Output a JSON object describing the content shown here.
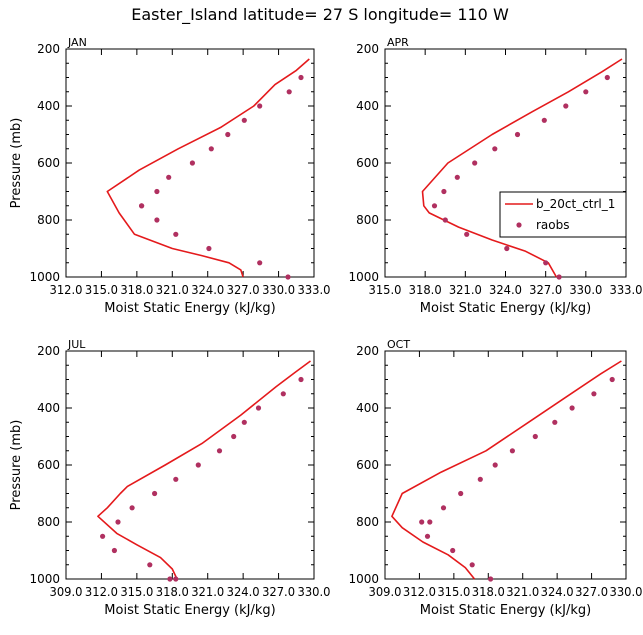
{
  "title": "Easter_Island  latitude= 27 S longitude= 110 W",
  "colors": {
    "model": "#e41a1c",
    "obs": "#b03060",
    "axis": "#000000"
  },
  "chart_data": [
    {
      "type": "line",
      "panel": "JAN",
      "xlabel": "Moist Static Energy (kJ/kg)",
      "ylabel": "Pressure (mb)",
      "xlim": [
        312.0,
        333.0
      ],
      "xticks": [
        312.0,
        315.0,
        318.0,
        321.0,
        324.0,
        327.0,
        330.0,
        333.0
      ],
      "xtick_labels": [
        "312.0",
        "315.0",
        "318.0",
        "321.0",
        "324.0",
        "327.0",
        "330.0",
        "333.0"
      ],
      "ylim": [
        200,
        1000
      ],
      "yticks": [
        200,
        400,
        600,
        800,
        1000
      ],
      "series": [
        {
          "name": "b_20ct_ctrl_1",
          "kind": "line",
          "x": [
            332.6,
            331.5,
            329.7,
            327.9,
            325.1,
            321.5,
            318.2,
            315.5,
            316.5,
            317.8,
            321.0,
            323.5,
            325.8,
            326.8,
            327.0
          ],
          "y": [
            235,
            275,
            325,
            400,
            475,
            550,
            625,
            700,
            775,
            850,
            900,
            925,
            950,
            975,
            1000
          ]
        },
        {
          "name": "raobs",
          "kind": "scatter",
          "x": [
            331.9,
            330.9,
            328.4,
            327.1,
            325.7,
            324.3,
            322.7,
            320.7,
            319.7,
            318.4,
            318.4,
            319.7,
            321.3,
            324.1,
            328.4,
            330.8
          ],
          "y": [
            300,
            350,
            400,
            450,
            500,
            550,
            600,
            650,
            700,
            750,
            750,
            800,
            850,
            900,
            950,
            1000
          ]
        }
      ]
    },
    {
      "type": "line",
      "panel": "APR",
      "xlabel": "Moist Static Energy (kJ/kg)",
      "ylabel": "",
      "xlim": [
        315.0,
        333.0
      ],
      "xticks": [
        315.0,
        318.0,
        321.0,
        324.0,
        327.0,
        330.0,
        333.0
      ],
      "xtick_labels": [
        "315.0",
        "318.0",
        "321.0",
        "324.0",
        "327.0",
        "330.0",
        "333.0"
      ],
      "ylim": [
        200,
        1000
      ],
      "yticks": [
        200,
        400,
        600,
        800,
        1000
      ],
      "series": [
        {
          "name": "b_20ct_ctrl_1",
          "kind": "line",
          "x": [
            332.7,
            331.2,
            328.7,
            326.0,
            323.0,
            319.7,
            317.8,
            317.9,
            318.3,
            320.5,
            323.0,
            325.5,
            327.2,
            327.8
          ],
          "y": [
            235,
            280,
            350,
            420,
            500,
            600,
            700,
            750,
            775,
            825,
            870,
            910,
            950,
            1000
          ]
        },
        {
          "name": "raobs",
          "kind": "scatter",
          "x": [
            331.6,
            330.0,
            328.5,
            326.9,
            324.9,
            323.2,
            321.7,
            320.4,
            319.4,
            318.7,
            319.5,
            321.1,
            324.1,
            327.0,
            328.0
          ],
          "y": [
            300,
            350,
            400,
            450,
            500,
            550,
            600,
            650,
            700,
            750,
            800,
            850,
            900,
            950,
            1000
          ]
        }
      ],
      "legend": {
        "placement": "right",
        "entries": [
          "b_20ct_ctrl_1",
          "raobs"
        ]
      }
    },
    {
      "type": "line",
      "panel": "JUL",
      "xlabel": "Moist Static Energy (kJ/kg)",
      "ylabel": "Pressure (mb)",
      "xlim": [
        309.0,
        330.0
      ],
      "xticks": [
        309.0,
        312.0,
        315.0,
        318.0,
        321.0,
        324.0,
        327.0,
        330.0
      ],
      "xtick_labels": [
        "309.0",
        "312.0",
        "315.0",
        "318.0",
        "321.0",
        "324.0",
        "327.0",
        "330.0"
      ],
      "ylim": [
        200,
        1000
      ],
      "yticks": [
        200,
        400,
        600,
        800,
        1000
      ],
      "series": [
        {
          "name": "b_20ct_ctrl_1",
          "kind": "line",
          "x": [
            329.7,
            328.4,
            326.8,
            323.8,
            320.5,
            317.4,
            314.2,
            313.6,
            312.5,
            311.7,
            313.3,
            315.0,
            317.0,
            318.0,
            318.4
          ],
          "y": [
            235,
            275,
            325,
            425,
            525,
            600,
            675,
            700,
            750,
            780,
            840,
            880,
            925,
            965,
            1000
          ]
        },
        {
          "name": "raobs",
          "kind": "scatter",
          "x": [
            328.9,
            327.4,
            325.3,
            324.1,
            323.2,
            322.0,
            320.2,
            318.3,
            316.5,
            314.6,
            313.4,
            312.1,
            313.1,
            316.1,
            317.8,
            318.3
          ],
          "y": [
            300,
            350,
            400,
            450,
            500,
            550,
            600,
            650,
            700,
            750,
            800,
            850,
            900,
            950,
            1000,
            1000
          ]
        }
      ]
    },
    {
      "type": "line",
      "panel": "OCT",
      "xlabel": "Moist Static Energy (kJ/kg)",
      "ylabel": "",
      "xlim": [
        309.0,
        330.0
      ],
      "xticks": [
        309.0,
        312.0,
        315.0,
        318.0,
        321.0,
        324.0,
        327.0,
        330.0
      ],
      "xtick_labels": [
        "309.0",
        "312.0",
        "315.0",
        "318.0",
        "321.0",
        "324.0",
        "327.0",
        "330.0"
      ],
      "ylim": [
        200,
        1000
      ],
      "yticks": [
        200,
        400,
        600,
        800,
        1000
      ],
      "series": [
        {
          "name": "b_20ct_ctrl_1",
          "kind": "line",
          "x": [
            329.6,
            327.8,
            325.2,
            321.5,
            317.8,
            313.9,
            310.5,
            309.6,
            310.5,
            312.3,
            314.5,
            316.0,
            316.8
          ],
          "y": [
            235,
            280,
            350,
            450,
            550,
            625,
            700,
            780,
            820,
            870,
            915,
            960,
            1000
          ]
        },
        {
          "name": "raobs",
          "kind": "scatter",
          "x": [
            328.8,
            327.2,
            325.3,
            323.8,
            322.1,
            320.1,
            318.6,
            317.3,
            315.6,
            314.1,
            312.9,
            312.2,
            312.7,
            314.9,
            316.6,
            318.2
          ],
          "y": [
            300,
            350,
            400,
            450,
            500,
            550,
            600,
            650,
            700,
            750,
            800,
            800,
            850,
            900,
            950,
            1000
          ]
        }
      ]
    }
  ]
}
